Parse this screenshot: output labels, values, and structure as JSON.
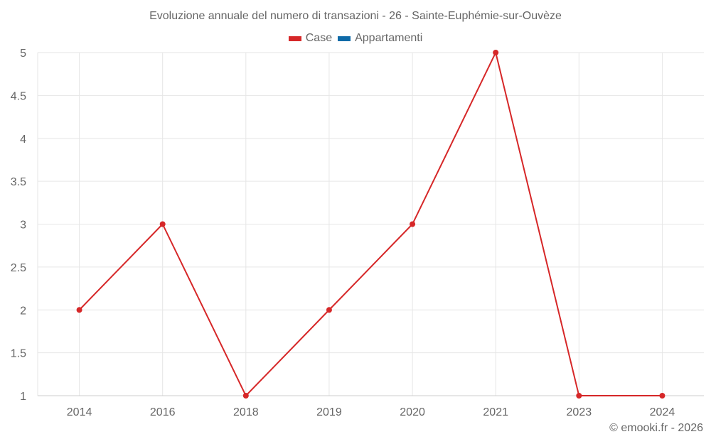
{
  "title": "Evoluzione annuale del numero di transazioni - 26 - Sainte-Euphémie-sur-Ouvèze",
  "legend": [
    {
      "label": "Case",
      "color": "#d62728"
    },
    {
      "label": "Appartamenti",
      "color": "#0e6aa8"
    }
  ],
  "credit": "© emooki.fr - 2026",
  "chart_data": {
    "type": "line",
    "title": "Evoluzione annuale del numero di transazioni - 26 - Sainte-Euphémie-sur-Ouvèze",
    "xlabel": "",
    "ylabel": "",
    "categories": [
      "2014",
      "2016",
      "2018",
      "2019",
      "2020",
      "2021",
      "2023",
      "2024"
    ],
    "series": [
      {
        "name": "Case",
        "color": "#d62728",
        "values": [
          2,
          3,
          1,
          2,
          3,
          5,
          1,
          1
        ]
      },
      {
        "name": "Appartamenti",
        "color": "#0e6aa8",
        "values": []
      }
    ],
    "ylim": [
      1,
      5
    ],
    "yticks": [
      "1",
      "1.5",
      "2",
      "2.5",
      "3",
      "3.5",
      "4",
      "4.5",
      "5"
    ],
    "grid": true,
    "legend_position": "top"
  }
}
